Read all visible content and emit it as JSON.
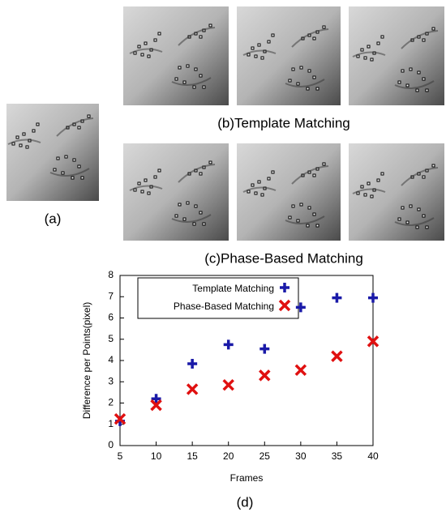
{
  "captions": {
    "a": "(a)",
    "b": "(b)Template Matching",
    "c": "(c)Phase-Based Matching",
    "d": "(d)"
  },
  "chart_data": {
    "type": "scatter",
    "x_label": "Frames",
    "y_label": "Difference per Points(pixel)",
    "x": [
      5,
      10,
      15,
      20,
      25,
      30,
      35,
      40
    ],
    "series": [
      {
        "name": "Template Matching",
        "color": "#1a1aa8",
        "marker": "plus",
        "values": [
          1.15,
          2.2,
          3.85,
          4.75,
          4.55,
          6.5,
          6.95,
          6.95
        ]
      },
      {
        "name": "Phase-Based Matching",
        "color": "#e01010",
        "marker": "cross",
        "values": [
          1.25,
          1.9,
          2.65,
          2.85,
          3.3,
          3.55,
          4.2,
          4.9
        ]
      }
    ],
    "xlim": [
      5,
      40
    ],
    "xticks": [
      5,
      10,
      15,
      20,
      25,
      30,
      35,
      40
    ],
    "ylim": [
      0,
      8
    ],
    "yticks": [
      0,
      1,
      2,
      3,
      4,
      5,
      6,
      7,
      8
    ],
    "legend": "top-left"
  }
}
